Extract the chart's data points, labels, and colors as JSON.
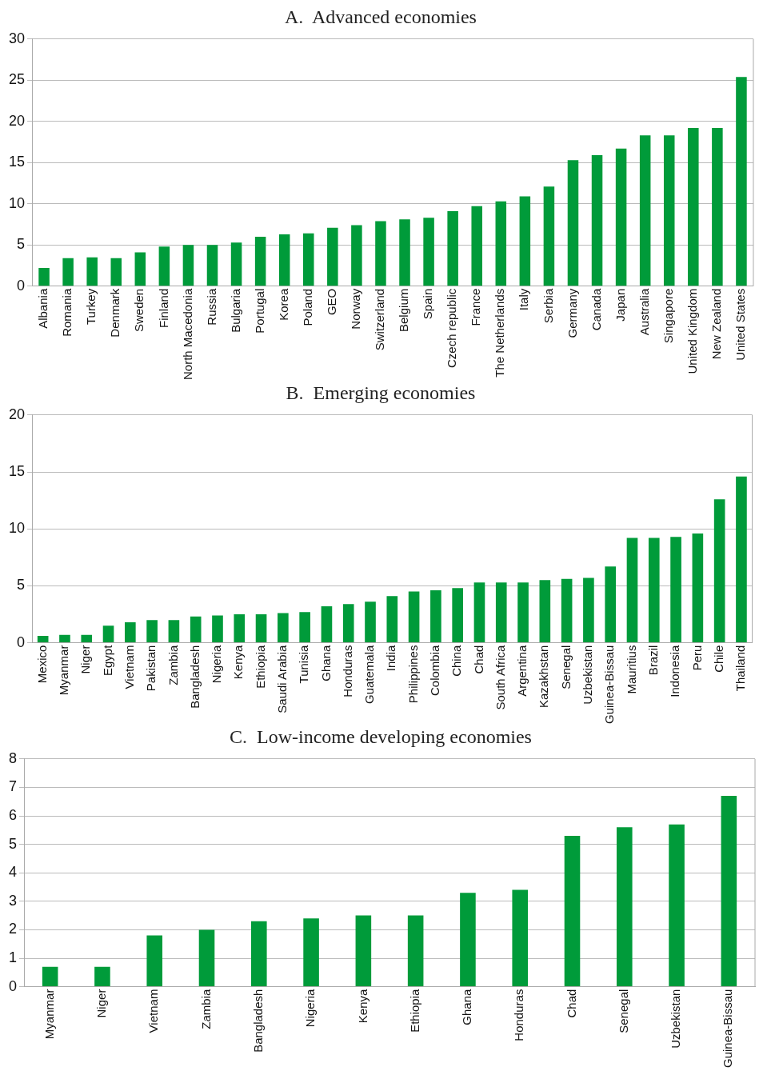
{
  "chart_data": [
    {
      "type": "bar",
      "title": "A.  Advanced economies",
      "categories": [
        "Albania",
        "Romania",
        "Turkey",
        "Denmark",
        "Sweden",
        "Finland",
        "North Macedonia",
        "Russia",
        "Bulgaria",
        "Portugal",
        "Korea",
        "Poland",
        "GEO",
        "Norway",
        "Switzerland",
        "Belgium",
        "Spain",
        "Czech republic",
        "France",
        "The Netherlands",
        "Italy",
        "Serbia",
        "Germany",
        "Canada",
        "Japan",
        "Australia",
        "Singapore",
        "United Kingdom",
        "New Zealand",
        "United States"
      ],
      "values": [
        2.2,
        3.4,
        3.5,
        3.4,
        4.1,
        4.8,
        5.0,
        5.0,
        5.3,
        6.0,
        6.3,
        6.4,
        7.1,
        7.4,
        7.9,
        8.1,
        8.3,
        9.1,
        9.7,
        10.3,
        10.9,
        12.1,
        15.3,
        15.9,
        16.7,
        18.3,
        18.3,
        19.2,
        19.2,
        25.4
      ],
      "color": "#009b3a",
      "ylim": [
        0,
        30
      ],
      "yticks": [
        0,
        5,
        10,
        15,
        20,
        25,
        30
      ],
      "grid": "y"
    },
    {
      "type": "bar",
      "title": "B.  Emerging economies",
      "categories": [
        "Mexico",
        "Myanmar",
        "Niger",
        "Egypt",
        "Vietnam",
        "Pakistan",
        "Zambia",
        "Bangladesh",
        "Nigeria",
        "Kenya",
        "Ethiopia",
        "Saudi Arabia",
        "Tunisia",
        "Ghana",
        "Honduras",
        "Guatemala",
        "India",
        "Philippines",
        "Colombia",
        "China",
        "Chad",
        "South Africa",
        "Argentina",
        "Kazakhstan",
        "Senegal",
        "Uzbekistan",
        "Guinea-Bissau",
        "Mauritius",
        "Brazil",
        "Indonesia",
        "Peru",
        "Chile",
        "Thailand"
      ],
      "values": [
        0.6,
        0.7,
        0.7,
        1.5,
        1.8,
        2.0,
        2.0,
        2.3,
        2.4,
        2.5,
        2.5,
        2.6,
        2.7,
        3.2,
        3.4,
        3.6,
        4.1,
        4.5,
        4.6,
        4.8,
        5.3,
        5.3,
        5.3,
        5.5,
        5.6,
        5.7,
        6.7,
        9.2,
        9.2,
        9.3,
        9.6,
        12.6,
        14.6
      ],
      "color": "#009b3a",
      "ylim": [
        0,
        20
      ],
      "yticks": [
        0,
        5,
        10,
        15,
        20
      ],
      "grid": "y"
    },
    {
      "type": "bar",
      "title": "C.  Low-income developing economies",
      "categories": [
        "Myanmar",
        "Niger",
        "Vietnam",
        "Zambia",
        "Bangladesh",
        "Nigeria",
        "Kenya",
        "Ethiopia",
        "Ghana",
        "Honduras",
        "Chad",
        "Senegal",
        "Uzbekistan",
        "Guinea-Bissau"
      ],
      "values": [
        0.7,
        0.7,
        1.8,
        2.0,
        2.3,
        2.4,
        2.5,
        2.5,
        3.3,
        3.4,
        5.3,
        5.6,
        5.7,
        6.7
      ],
      "color": "#009b3a",
      "ylim": [
        0,
        8
      ],
      "yticks": [
        0,
        1,
        2,
        3,
        4,
        5,
        6,
        7,
        8
      ],
      "grid": "y"
    }
  ]
}
